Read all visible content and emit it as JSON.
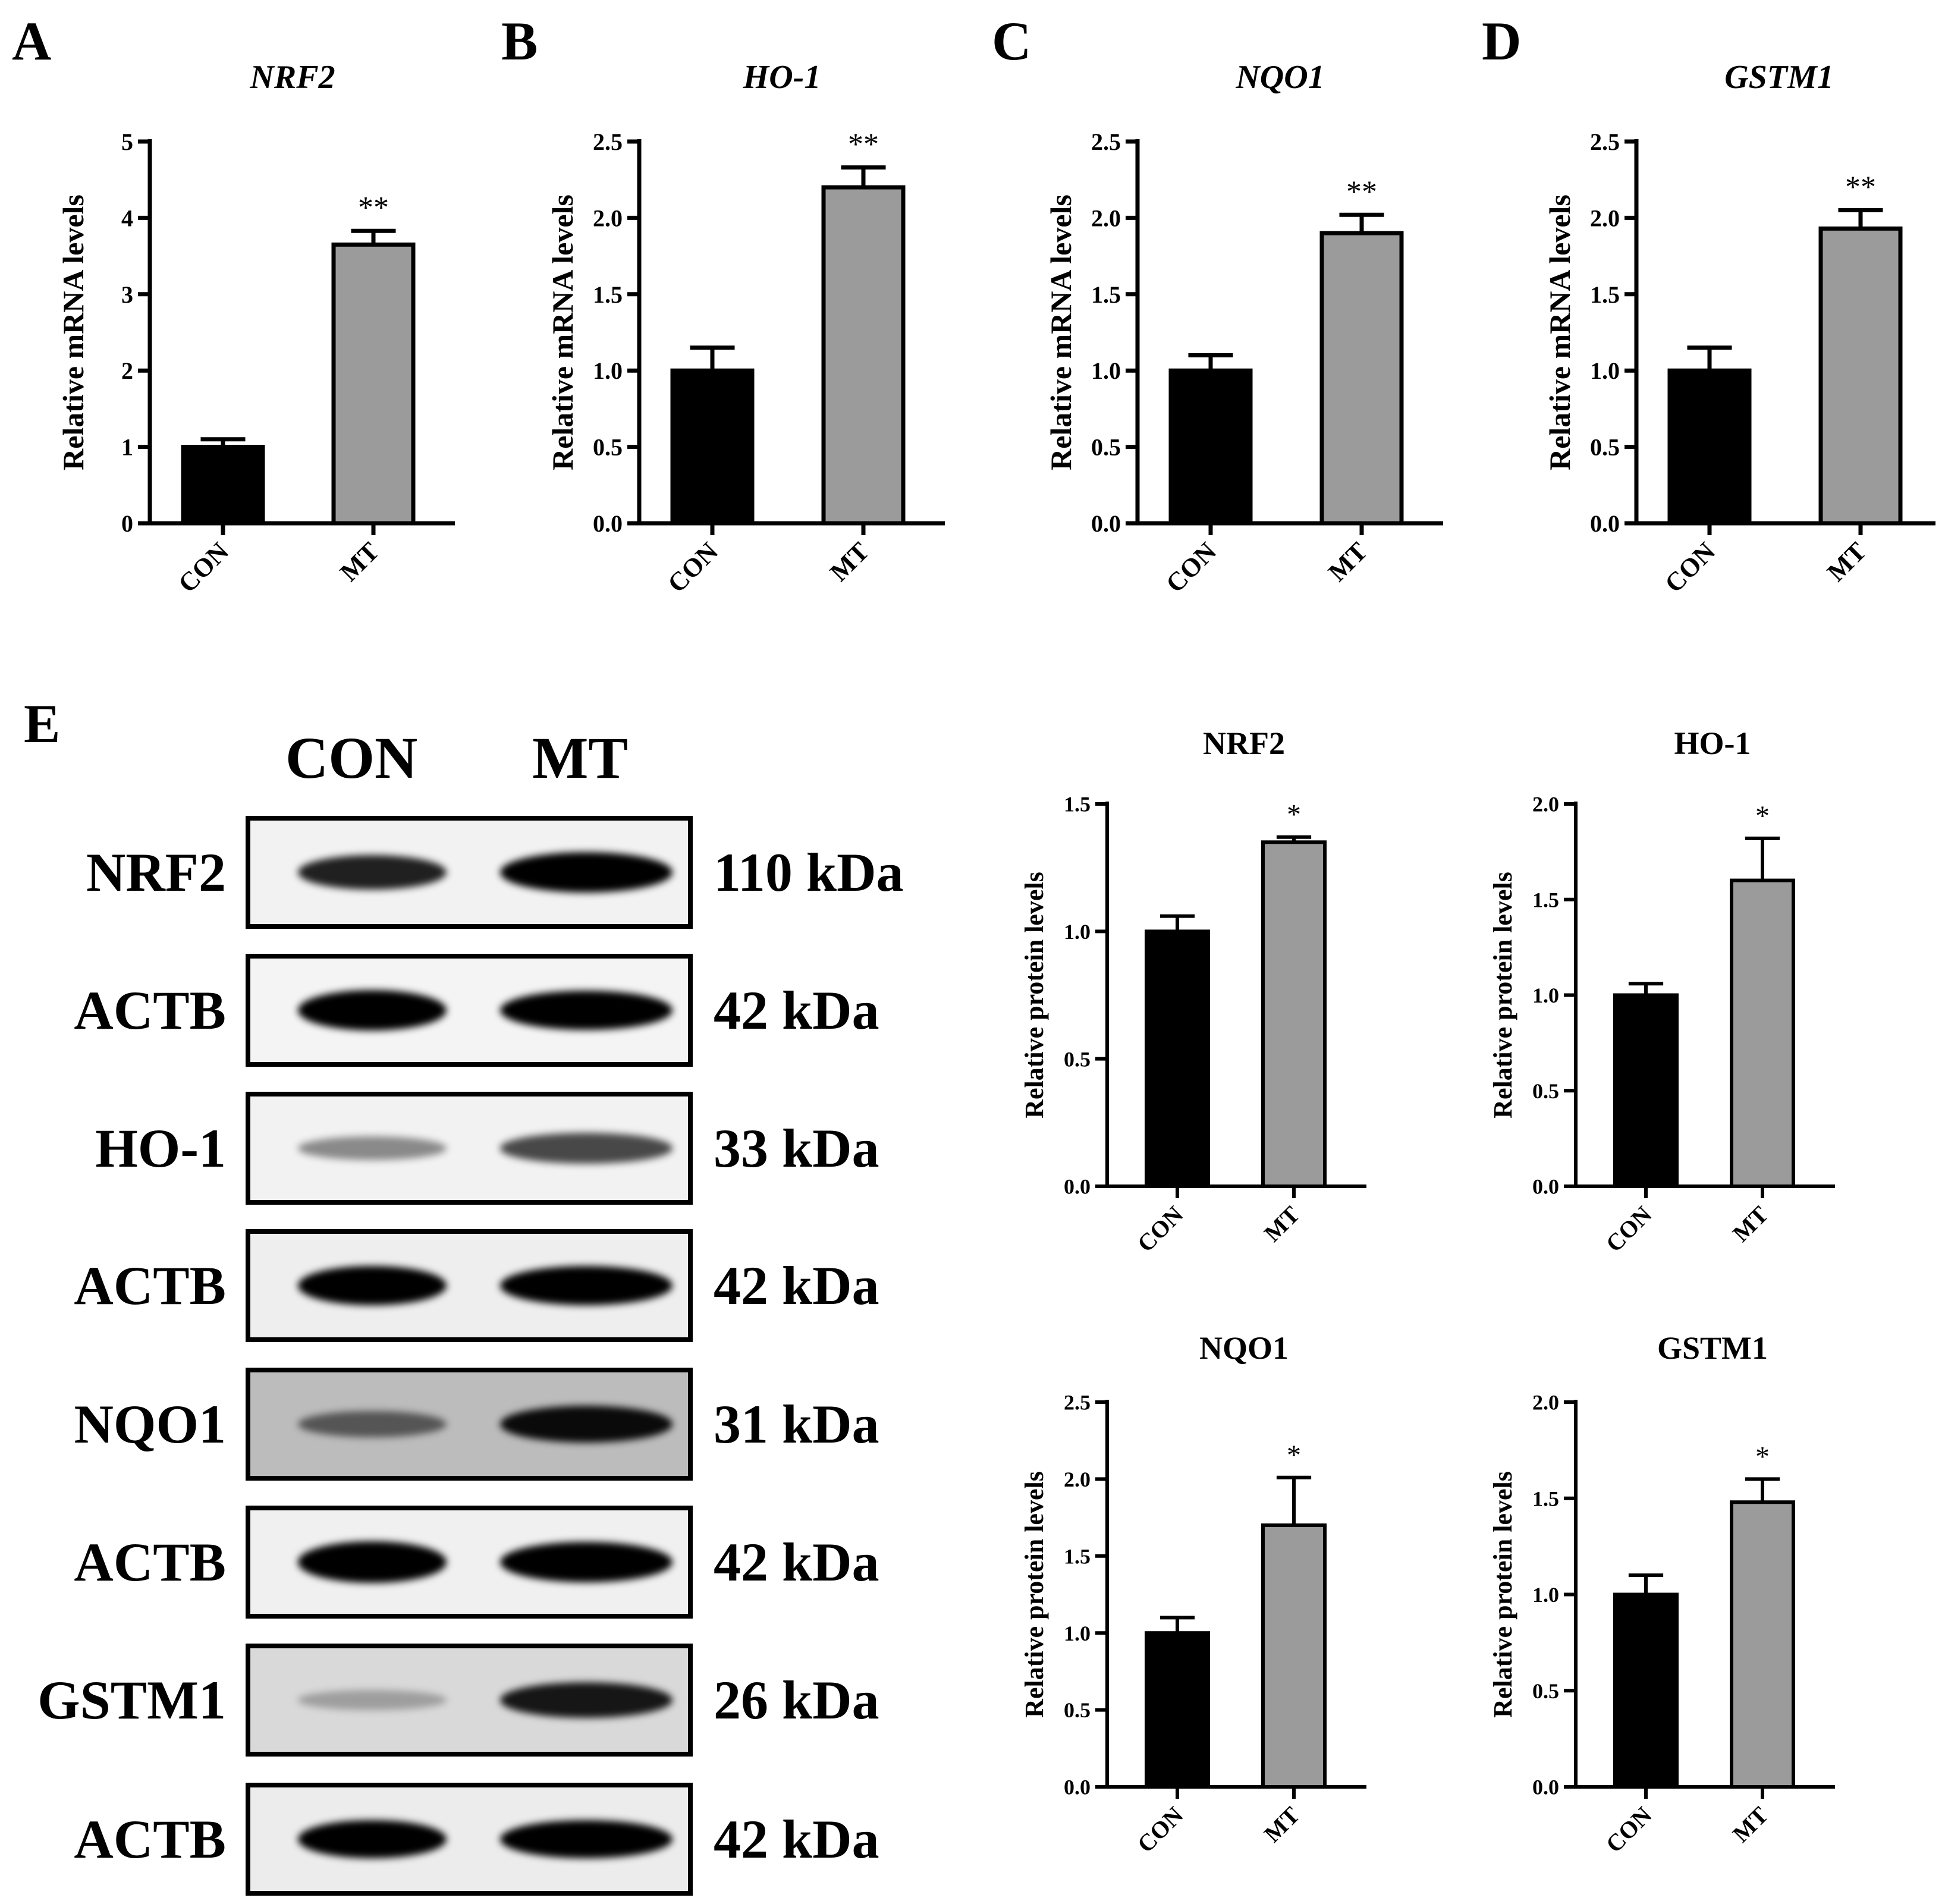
{
  "colors": {
    "con": "#000000",
    "mt": "#9b9b9b",
    "axis": "#000000"
  },
  "panel_letters": {
    "A": "A",
    "B": "B",
    "C": "C",
    "D": "D",
    "E": "E"
  },
  "blot": {
    "lanes": [
      "CON",
      "MT"
    ],
    "rows": [
      {
        "protein": "NRF2",
        "kda": "110 kDa",
        "bg": "#f2f2f2",
        "con": 0.72,
        "mt": 0.95
      },
      {
        "protein": "ACTB",
        "kda": "42 kDa",
        "bg": "#f4f4f4",
        "con": 0.95,
        "mt": 0.92
      },
      {
        "protein": "HO-1",
        "kda": "33 kDa",
        "bg": "#f2f2f2",
        "con": 0.28,
        "mt": 0.55
      },
      {
        "protein": "ACTB",
        "kda": "42 kDa",
        "bg": "#eeeeee",
        "con": 0.92,
        "mt": 0.9
      },
      {
        "protein": "NQO1",
        "kda": "31 kDa",
        "bg": "#bcbcbc",
        "con": 0.4,
        "mt": 0.8
      },
      {
        "protein": "ACTB",
        "kda": "42 kDa",
        "bg": "#f0f0f0",
        "con": 0.98,
        "mt": 0.96
      },
      {
        "protein": "GSTM1",
        "kda": "26 kDa",
        "bg": "#d9d9d9",
        "con": 0.12,
        "mt": 0.75
      },
      {
        "protein": "ACTB",
        "kda": "42 kDa",
        "bg": "#ececec",
        "con": 0.88,
        "mt": 0.88
      }
    ]
  },
  "chart_data": [
    {
      "id": "A",
      "type": "bar",
      "title": "NRF2",
      "italic_title": true,
      "ylabel": "Relative mRNA levels",
      "categories": [
        "CON",
        "MT"
      ],
      "values": [
        1.0,
        3.65
      ],
      "errors": [
        0.1,
        0.18
      ],
      "ylim": [
        0,
        5
      ],
      "yticks": [
        "0",
        "1",
        "2",
        "3",
        "4",
        "5"
      ],
      "annotations": [
        "",
        "**"
      ]
    },
    {
      "id": "B",
      "type": "bar",
      "title": "HO-1",
      "italic_title": true,
      "ylabel": "Relative mRNA levels",
      "categories": [
        "CON",
        "MT"
      ],
      "values": [
        1.0,
        2.2
      ],
      "errors": [
        0.15,
        0.13
      ],
      "ylim": [
        0,
        2.5
      ],
      "yticks": [
        "0.0",
        "0.5",
        "1.0",
        "1.5",
        "2.0",
        "2.5"
      ],
      "annotations": [
        "",
        "**"
      ]
    },
    {
      "id": "C",
      "type": "bar",
      "title": "NQO1",
      "italic_title": true,
      "ylabel": "Relative mRNA levels",
      "categories": [
        "CON",
        "MT"
      ],
      "values": [
        1.0,
        1.9
      ],
      "errors": [
        0.1,
        0.12
      ],
      "ylim": [
        0,
        2.5
      ],
      "yticks": [
        "0.0",
        "0.5",
        "1.0",
        "1.5",
        "2.0",
        "2.5"
      ],
      "annotations": [
        "",
        "**"
      ]
    },
    {
      "id": "D",
      "type": "bar",
      "title": "GSTM1",
      "italic_title": true,
      "ylabel": "Relative mRNA levels",
      "categories": [
        "CON",
        "MT"
      ],
      "values": [
        1.0,
        1.93
      ],
      "errors": [
        0.15,
        0.12
      ],
      "ylim": [
        0,
        2.5
      ],
      "yticks": [
        "0.0",
        "0.5",
        "1.0",
        "1.5",
        "2.0",
        "2.5"
      ],
      "annotations": [
        "",
        "**"
      ]
    },
    {
      "id": "E1",
      "type": "bar",
      "title": "NRF2",
      "italic_title": false,
      "ylabel": "Relative protein levels",
      "categories": [
        "CON",
        "MT"
      ],
      "values": [
        1.0,
        1.35
      ],
      "errors": [
        0.06,
        0.02
      ],
      "ylim": [
        0,
        1.5
      ],
      "yticks": [
        "0.0",
        "0.5",
        "1.0",
        "1.5"
      ],
      "annotations": [
        "",
        "*"
      ]
    },
    {
      "id": "E2",
      "type": "bar",
      "title": "HO-1",
      "italic_title": false,
      "ylabel": "Relative protein levels",
      "categories": [
        "CON",
        "MT"
      ],
      "values": [
        1.0,
        1.6
      ],
      "errors": [
        0.06,
        0.22
      ],
      "ylim": [
        0,
        2.0
      ],
      "yticks": [
        "0.0",
        "0.5",
        "1.0",
        "1.5",
        "2.0"
      ],
      "annotations": [
        "",
        "*"
      ]
    },
    {
      "id": "E3",
      "type": "bar",
      "title": "NQO1",
      "italic_title": false,
      "ylabel": "Relative protein levels",
      "categories": [
        "CON",
        "MT"
      ],
      "values": [
        1.0,
        1.7
      ],
      "errors": [
        0.1,
        0.31
      ],
      "ylim": [
        0,
        2.5
      ],
      "yticks": [
        "0.0",
        "0.5",
        "1.0",
        "1.5",
        "2.0",
        "2.5"
      ],
      "annotations": [
        "",
        "*"
      ]
    },
    {
      "id": "E4",
      "type": "bar",
      "title": "GSTM1",
      "italic_title": false,
      "ylabel": "Relative protein levels",
      "categories": [
        "CON",
        "MT"
      ],
      "values": [
        1.0,
        1.48
      ],
      "errors": [
        0.1,
        0.12
      ],
      "ylim": [
        0,
        2.0
      ],
      "yticks": [
        "0.0",
        "0.5",
        "1.0",
        "1.5",
        "2.0"
      ],
      "annotations": [
        "",
        "*"
      ]
    }
  ]
}
